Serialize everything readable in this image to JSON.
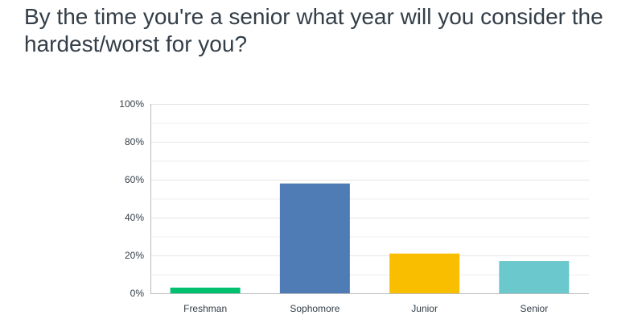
{
  "question": {
    "title": "By the time you're a senior what year will you consider the hardest/worst for you?"
  },
  "chart_data": {
    "type": "bar",
    "categories": [
      "Freshman",
      "Sophomore",
      "Junior",
      "Senior"
    ],
    "values": [
      3,
      58,
      21,
      17
    ],
    "colors": [
      "#00bf6f",
      "#507cb6",
      "#f9be00",
      "#6bc8cd"
    ],
    "title": "",
    "xlabel": "",
    "ylabel": "",
    "ylim": [
      0,
      100
    ],
    "yticks": [
      0,
      20,
      40,
      60,
      80,
      100
    ],
    "ytick_labels": [
      "0%",
      "20%",
      "40%",
      "60%",
      "80%",
      "100%"
    ],
    "grid": true,
    "legend": "none"
  }
}
